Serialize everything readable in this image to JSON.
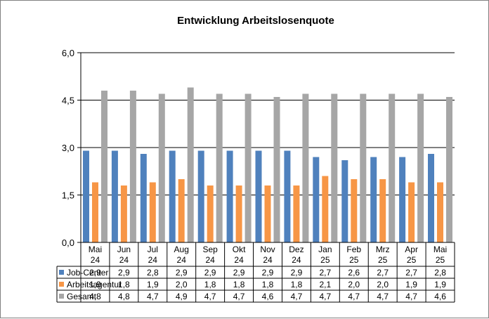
{
  "chart_data": {
    "type": "bar",
    "title": "Entwicklung  Arbeitslosenquote",
    "xlabel": "",
    "ylabel": "",
    "ylim": [
      0,
      6
    ],
    "y_ticks": [
      "0,0",
      "1,5",
      "3,0",
      "4,5",
      "6,0"
    ],
    "y_tick_values": [
      0,
      1.5,
      3,
      4.5,
      6
    ],
    "grid": true,
    "legend_placement": "data-table-left",
    "categories": [
      [
        "Mai",
        "24"
      ],
      [
        "Jun",
        "24"
      ],
      [
        "Jul",
        "24"
      ],
      [
        "Aug",
        "24"
      ],
      [
        "Sep",
        "24"
      ],
      [
        "Okt",
        "24"
      ],
      [
        "Nov",
        "24"
      ],
      [
        "Dez",
        "24"
      ],
      [
        "Jan",
        "25"
      ],
      [
        "Feb",
        "25"
      ],
      [
        "Mrz",
        "25"
      ],
      [
        "Apr",
        "25"
      ],
      [
        "Mai",
        "25"
      ]
    ],
    "series": [
      {
        "name": "Job-Center",
        "color": "#4f81bd",
        "values": [
          2.9,
          2.9,
          2.8,
          2.9,
          2.9,
          2.9,
          2.9,
          2.9,
          2.7,
          2.6,
          2.7,
          2.7,
          2.8
        ],
        "labels": [
          "2,9",
          "2,9",
          "2,8",
          "2,9",
          "2,9",
          "2,9",
          "2,9",
          "2,9",
          "2,7",
          "2,6",
          "2,7",
          "2,7",
          "2,8"
        ]
      },
      {
        "name": "Arbeitsagentur",
        "color": "#f79646",
        "values": [
          1.9,
          1.8,
          1.9,
          2.0,
          1.8,
          1.8,
          1.8,
          1.8,
          2.1,
          2.0,
          2.0,
          1.9,
          1.9
        ],
        "labels": [
          "1,9",
          "1,8",
          "1,9",
          "2,0",
          "1,8",
          "1,8",
          "1,8",
          "1,8",
          "2,1",
          "2,0",
          "2,0",
          "1,9",
          "1,9"
        ]
      },
      {
        "name": "Gesamt",
        "color": "#a6a6a6",
        "values": [
          4.8,
          4.8,
          4.7,
          4.9,
          4.7,
          4.7,
          4.6,
          4.7,
          4.7,
          4.7,
          4.7,
          4.7,
          4.6
        ],
        "labels": [
          "4,8",
          "4,8",
          "4,7",
          "4,9",
          "4,7",
          "4,7",
          "4,6",
          "4,7",
          "4,7",
          "4,7",
          "4,7",
          "4,7",
          "4,6"
        ]
      }
    ]
  }
}
